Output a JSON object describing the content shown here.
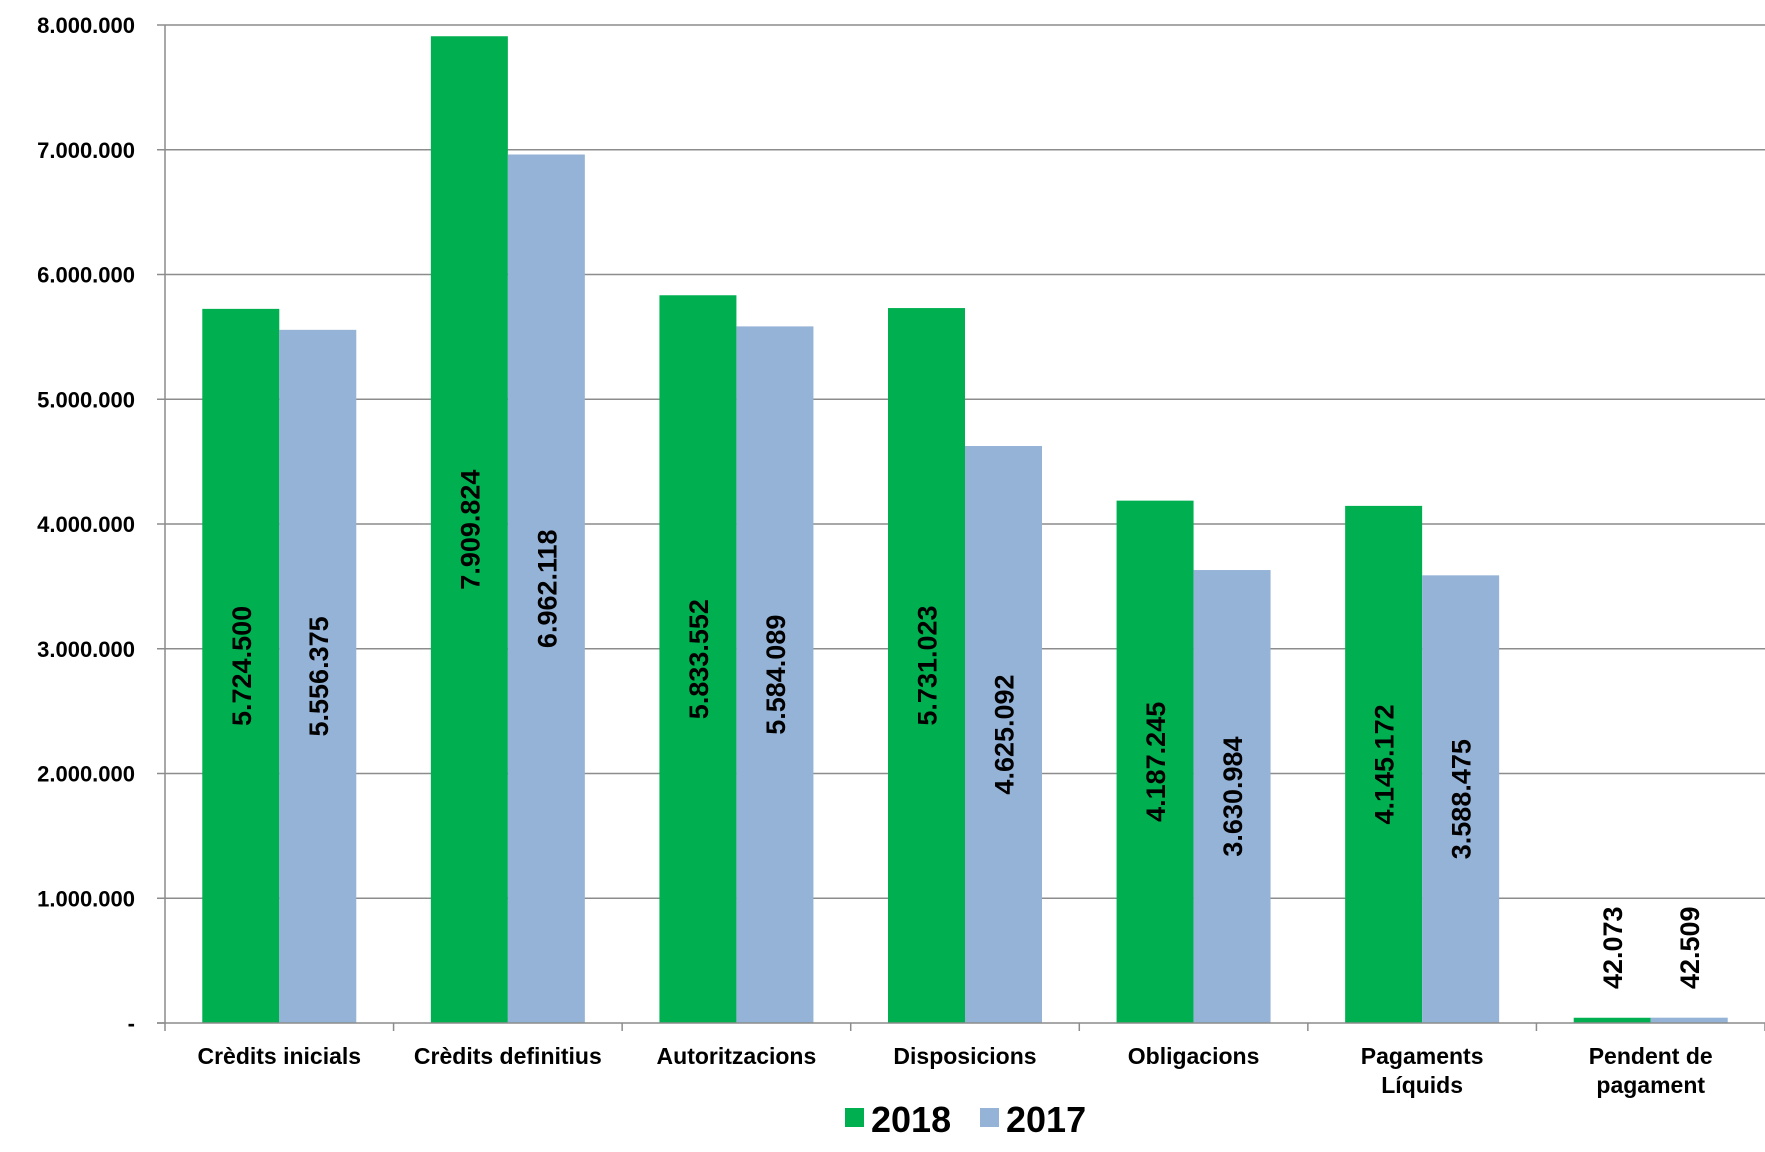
{
  "chart_data": {
    "type": "bar",
    "categories": [
      [
        "Crèdits inicials"
      ],
      [
        "Crèdits definitius"
      ],
      [
        "Autoritzacions"
      ],
      [
        "Disposicions"
      ],
      [
        "Obligacions"
      ],
      [
        "Pagaments",
        "Líquids"
      ],
      [
        "Pendent de",
        "pagament"
      ]
    ],
    "series": [
      {
        "name": "2018",
        "color": "#00b050",
        "values": [
          5724500,
          7909824,
          5833552,
          5731023,
          4187245,
          4145172,
          42073
        ],
        "labels": [
          "5.724.500",
          "7.909.824",
          "5.833.552",
          "5.731.023",
          "4.187.245",
          "4.145.172",
          "42.073"
        ]
      },
      {
        "name": "2017",
        "color": "#95b3d7",
        "values": [
          5556375,
          6962118,
          5584089,
          4625092,
          3630984,
          3588475,
          42509
        ],
        "labels": [
          "5.556.375",
          "6.962.118",
          "5.584.089",
          "4.625.092",
          "3.630.984",
          "3.588.475",
          "42.509"
        ]
      }
    ],
    "y_ticks": [
      {
        "value": 0,
        "label": "-"
      },
      {
        "value": 1000000,
        "label": "1.000.000"
      },
      {
        "value": 2000000,
        "label": "2.000.000"
      },
      {
        "value": 3000000,
        "label": "3.000.000"
      },
      {
        "value": 4000000,
        "label": "4.000.000"
      },
      {
        "value": 5000000,
        "label": "5.000.000"
      },
      {
        "value": 6000000,
        "label": "6.000.000"
      },
      {
        "value": 7000000,
        "label": "7.000.000"
      },
      {
        "value": 8000000,
        "label": "8.000.000"
      }
    ],
    "ylim": [
      0,
      8000000
    ],
    "grid": true,
    "legend_position": "bottom",
    "title": "",
    "xlabel": "",
    "ylabel": ""
  }
}
